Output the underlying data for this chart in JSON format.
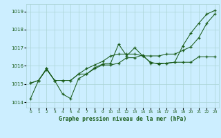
{
  "title": "Graphe pression niveau de la mer (hPa)",
  "background_color": "#cceeff",
  "line_color": "#1a5c1a",
  "grid_color": "#aad4d4",
  "ylim": [
    1013.7,
    1019.4
  ],
  "yticks": [
    1014,
    1015,
    1016,
    1017,
    1018,
    1019
  ],
  "xlim": [
    -0.5,
    23.5
  ],
  "xticks": [
    0,
    1,
    2,
    3,
    4,
    5,
    6,
    7,
    8,
    9,
    10,
    11,
    12,
    13,
    14,
    15,
    16,
    17,
    18,
    19,
    20,
    21,
    22,
    23
  ],
  "series": [
    [
      1014.2,
      1015.2,
      1015.8,
      1015.2,
      1014.45,
      1014.2,
      1015.3,
      1015.55,
      1015.9,
      1016.1,
      1016.15,
      1017.2,
      1016.55,
      1017.0,
      1016.55,
      1016.2,
      1016.1,
      1016.15,
      1016.2,
      1017.1,
      1017.8,
      1018.35,
      1018.85,
      1019.05
    ],
    [
      1015.05,
      1015.2,
      1015.85,
      1015.2,
      1015.2,
      1015.2,
      1015.55,
      1015.55,
      1015.85,
      1016.05,
      1016.05,
      1016.15,
      1016.45,
      1016.45,
      1016.6,
      1016.15,
      1016.15,
      1016.15,
      1016.2,
      1016.2,
      1016.2,
      1016.5,
      1016.5,
      1016.5
    ],
    [
      1015.05,
      1015.2,
      1015.85,
      1015.2,
      1015.2,
      1015.2,
      1015.55,
      1015.85,
      1016.05,
      1016.25,
      1016.55,
      1016.65,
      1016.65,
      1016.65,
      1016.55,
      1016.55,
      1016.55,
      1016.65,
      1016.65,
      1016.85,
      1017.05,
      1017.55,
      1018.35,
      1018.85
    ]
  ]
}
